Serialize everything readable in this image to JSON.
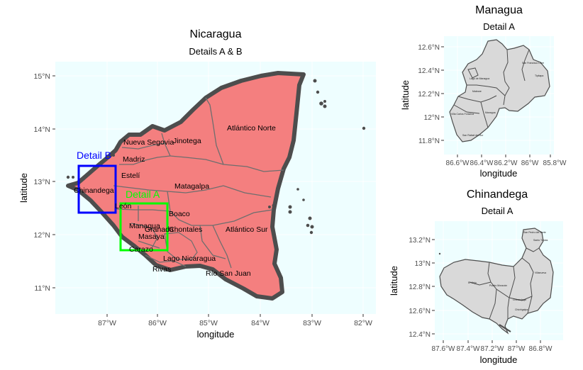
{
  "main_map": {
    "title": "Nicaragua",
    "subtitle": "Details A & B",
    "xlabel": "longitude",
    "ylabel": "latitude",
    "x_ticks": [
      "87°W",
      "86°W",
      "85°W",
      "84°W",
      "83°W",
      "82°W"
    ],
    "y_ticks": [
      "15°N",
      "14°N",
      "13°N",
      "12°N",
      "11°N"
    ],
    "regions": [
      "Atlántico Norte",
      "Jinotega",
      "Nueva Segovia",
      "Madriz",
      "Estelí",
      "Chinandega",
      "León",
      "Matagalpa",
      "Boaco",
      "Managua",
      "Granada",
      "Chontales",
      "Masaya",
      "Carazo",
      "Atlántico Sur",
      "Lago Nicaragua",
      "Rivas",
      "Río San Juan"
    ],
    "detail_boxes": [
      {
        "label": "Detail B",
        "color": "#0000ff"
      },
      {
        "label": "Detail A",
        "color": "#00ff00"
      }
    ],
    "fill_color": "#f47f7f",
    "border_color": "#4d4d4d",
    "background_color": "#eefeff"
  },
  "managua_map": {
    "title": "Managua",
    "subtitle": "Detail A",
    "xlabel": "longitude",
    "ylabel": "latitude",
    "x_ticks": [
      "86.6°W",
      "86.4°W",
      "86.2°W",
      "86°W",
      "85.8°W"
    ],
    "y_ticks": [
      "12.6°N",
      "12.4°N",
      "12.2°N",
      "12°N",
      "11.8°N"
    ],
    "labels": [
      "San Francisco Libre",
      "Tipitapa",
      "Lago de Managua",
      "Mateare",
      "Managua",
      "Villa Carlos Fonseca",
      "San Rafael del Sur"
    ]
  },
  "chinandega_map": {
    "title": "Chinandega",
    "subtitle": "Detail A",
    "xlabel": "longitude",
    "ylabel": "latitude",
    "x_ticks": [
      "87.6°W",
      "87.4°W",
      "87.2°W",
      "87°W",
      "86.8°W"
    ],
    "y_ticks": [
      "13.2°N",
      "13°N",
      "12.8°N",
      "12.6°N",
      "12.4°N"
    ],
    "labels": [
      "San Pedro del Norte",
      "Santo Tomás",
      "Villanueva",
      "Chinandega",
      "El Viejo",
      "Puerto Morazán",
      "Chichigalpa"
    ]
  }
}
